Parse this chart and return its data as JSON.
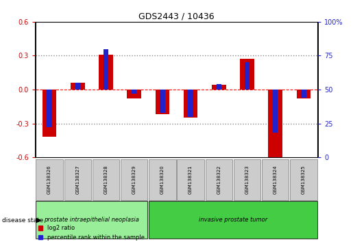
{
  "title": "GDS2443 / 10436",
  "samples": [
    "GSM138326",
    "GSM138327",
    "GSM138328",
    "GSM138329",
    "GSM138320",
    "GSM138321",
    "GSM138322",
    "GSM138323",
    "GSM138324",
    "GSM138325"
  ],
  "log2_ratio": [
    -0.42,
    0.06,
    0.31,
    -0.08,
    -0.22,
    -0.25,
    0.04,
    0.27,
    -0.6,
    -0.08
  ],
  "percentile_rank": [
    22,
    55,
    80,
    47,
    33,
    30,
    54,
    70,
    18,
    44
  ],
  "ylim_left": [
    -0.6,
    0.6
  ],
  "ylim_right": [
    0,
    100
  ],
  "yticks_left": [
    -0.6,
    -0.3,
    0.0,
    0.3,
    0.6
  ],
  "yticks_right": [
    0,
    25,
    50,
    75,
    100
  ],
  "red_color": "#cc0000",
  "blue_color": "#2222cc",
  "red_bar_width": 0.5,
  "blue_bar_width": 0.18,
  "groups": [
    {
      "label": "prostate intraepithelial neoplasia",
      "indices": [
        0,
        1,
        2,
        3
      ],
      "color": "#99ee99"
    },
    {
      "label": "invasive prostate tumor",
      "indices": [
        4,
        5,
        6,
        7,
        8,
        9
      ],
      "color": "#44cc44"
    }
  ],
  "disease_state_label": "disease state",
  "legend_red": "log2 ratio",
  "legend_blue": "percentile rank within the sample",
  "left_tick_color": "#cc0000",
  "right_tick_color": "#2222cc",
  "bg_color": "#ffffff",
  "sample_box_color": "#cccccc",
  "group_border_color": "#333333"
}
